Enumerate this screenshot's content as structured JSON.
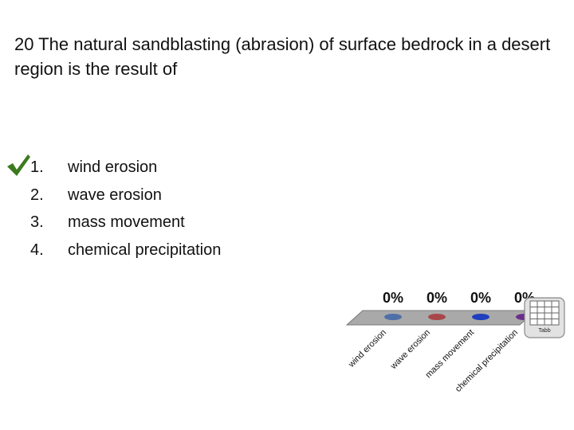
{
  "question": {
    "text": "20 The natural sandblasting (abrasion) of surface bedrock in a desert region is the result of"
  },
  "answers": [
    {
      "number": "1.",
      "text": "wind erosion",
      "correct": true
    },
    {
      "number": "2.",
      "text": "wave erosion",
      "correct": false
    },
    {
      "number": "3.",
      "text": "mass movement",
      "correct": false
    },
    {
      "number": "4.",
      "text": "chemical precipitation",
      "correct": false
    }
  ],
  "chart_data": {
    "type": "bar",
    "categories": [
      "wind erosion",
      "wave erosion",
      "mass movement",
      "chemical precipitation"
    ],
    "values": [
      0,
      0,
      0,
      0
    ],
    "value_labels": [
      "0%",
      "0%",
      "0%",
      "0%"
    ],
    "colors": [
      "#4f6fa8",
      "#a8474a",
      "#1f3fbf",
      "#6b2f8a"
    ],
    "ylim": [
      0,
      100
    ]
  },
  "table_icon": {
    "name": "table-icon",
    "label": "Tabb"
  },
  "colors": {
    "check": "#3d7a1f",
    "platform": "#a9a9a9"
  }
}
